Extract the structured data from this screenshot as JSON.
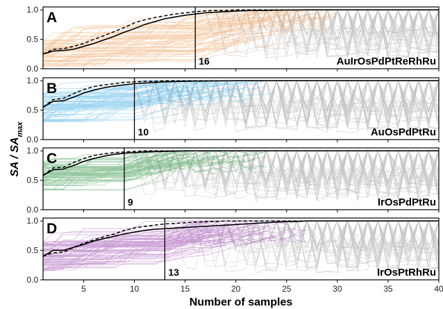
{
  "chart_data": {
    "type": "line",
    "xlabel": "Number of samples",
    "ylabel": {
      "main": "SA",
      "sep": " / ",
      "sub_base": "SA",
      "sub": "max"
    },
    "xlim": [
      1,
      40
    ],
    "xticks": [
      5,
      10,
      15,
      20,
      25,
      30,
      35,
      40
    ],
    "yticks": [
      0.0,
      0.5,
      1.0
    ],
    "ytick_labels": [
      "0.0",
      "0.5",
      "1.0"
    ],
    "ylim": [
      0,
      1.05
    ],
    "grid": false,
    "panels": [
      {
        "letter": "A",
        "name": "AuIrOsPdPtReRhRu",
        "threshold": 16,
        "threshold_label": "16",
        "color": "#f0a462",
        "mean_curve": {
          "x": [
            1,
            2,
            3,
            4,
            5,
            6,
            7,
            8,
            9,
            10,
            11,
            12,
            13,
            14,
            15,
            16,
            17,
            18,
            19,
            20,
            21,
            22,
            23,
            24,
            25,
            26,
            27,
            28,
            29,
            30,
            31,
            32,
            33,
            34,
            35,
            36,
            37,
            38,
            39,
            40
          ],
          "y": [
            0.25,
            0.3,
            0.31,
            0.33,
            0.38,
            0.43,
            0.49,
            0.55,
            0.62,
            0.68,
            0.75,
            0.8,
            0.85,
            0.88,
            0.91,
            0.93,
            0.95,
            0.96,
            0.97,
            0.98,
            0.985,
            0.99,
            0.99,
            0.995,
            0.997,
            0.998,
            1,
            1,
            1,
            1,
            1,
            1,
            1,
            1,
            1,
            1,
            1,
            1,
            1,
            1
          ]
        },
        "median_curve": {
          "x": [
            1,
            2,
            3,
            4,
            5,
            6,
            7,
            8,
            9,
            10,
            11,
            12,
            13,
            14,
            15,
            16,
            17,
            18,
            19,
            20,
            21,
            22,
            23,
            24,
            25,
            26,
            27,
            28,
            29,
            30,
            31,
            32,
            33,
            34,
            35,
            36,
            37,
            38,
            39,
            40
          ],
          "y": [
            0.25,
            0.33,
            0.34,
            0.38,
            0.43,
            0.5,
            0.56,
            0.63,
            0.7,
            0.78,
            0.83,
            0.87,
            0.9,
            0.93,
            0.95,
            0.97,
            0.98,
            0.99,
            0.99,
            1,
            1,
            1,
            1,
            1,
            1,
            1,
            1,
            1,
            1,
            1,
            1,
            1,
            1,
            1,
            1,
            1,
            1,
            1,
            1,
            1
          ]
        }
      },
      {
        "letter": "B",
        "name": "AuOsPdPtRu",
        "threshold": 10,
        "threshold_label": "10",
        "color": "#4db3e6",
        "mean_curve": {
          "x": [
            1,
            2,
            3,
            4,
            5,
            6,
            7,
            8,
            9,
            10,
            11,
            12,
            13,
            14,
            15,
            16,
            17,
            18,
            19,
            20,
            21,
            22,
            23,
            24,
            25,
            26,
            27,
            28,
            29,
            30,
            31,
            32,
            33,
            34,
            35,
            36,
            37,
            38,
            39,
            40
          ],
          "y": [
            0.55,
            0.65,
            0.66,
            0.72,
            0.79,
            0.84,
            0.88,
            0.91,
            0.93,
            0.95,
            0.96,
            0.97,
            0.98,
            0.985,
            0.99,
            0.993,
            0.995,
            0.997,
            0.998,
            1,
            1,
            1,
            1,
            1,
            1,
            1,
            1,
            1,
            1,
            1,
            1,
            1,
            1,
            1,
            1,
            1,
            1,
            1,
            1,
            1
          ]
        },
        "median_curve": {
          "x": [
            1,
            2,
            3,
            4,
            5,
            6,
            7,
            8,
            9,
            10,
            11,
            12,
            13,
            14,
            15,
            16,
            17,
            18,
            19,
            20,
            21,
            22,
            23,
            24,
            25,
            26,
            27,
            28,
            29,
            30,
            31,
            32,
            33,
            34,
            35,
            36,
            37,
            38,
            39,
            40
          ],
          "y": [
            0.55,
            0.68,
            0.7,
            0.78,
            0.85,
            0.9,
            0.93,
            0.95,
            0.97,
            0.98,
            0.99,
            0.99,
            1,
            1,
            1,
            1,
            1,
            1,
            1,
            1,
            1,
            1,
            1,
            1,
            1,
            1,
            1,
            1,
            1,
            1,
            1,
            1,
            1,
            1,
            1,
            1,
            1,
            1,
            1,
            1
          ]
        }
      },
      {
        "letter": "C",
        "name": "IrOsPdPtRu",
        "threshold": 9,
        "threshold_label": "9",
        "color": "#3d9a4f",
        "mean_curve": {
          "x": [
            1,
            2,
            3,
            4,
            5,
            6,
            7,
            8,
            9,
            10,
            11,
            12,
            13,
            14,
            15,
            16,
            17,
            18,
            19,
            20,
            21,
            22,
            23,
            24,
            25,
            26,
            27,
            28,
            29,
            30,
            31,
            32,
            33,
            34,
            35,
            36,
            37,
            38,
            39,
            40
          ],
          "y": [
            0.58,
            0.68,
            0.69,
            0.75,
            0.82,
            0.87,
            0.91,
            0.94,
            0.96,
            0.97,
            0.98,
            0.985,
            0.99,
            0.995,
            1,
            1,
            1,
            1,
            1,
            1,
            1,
            1,
            1,
            1,
            1,
            1,
            1,
            1,
            1,
            1,
            1,
            1,
            1,
            1,
            1,
            1,
            1,
            1,
            1,
            1
          ]
        },
        "median_curve": {
          "x": [
            1,
            2,
            3,
            4,
            5,
            6,
            7,
            8,
            9,
            10,
            11,
            12,
            13,
            14,
            15,
            16,
            17,
            18,
            19,
            20,
            21,
            22,
            23,
            24,
            25,
            26,
            27,
            28,
            29,
            30,
            31,
            32,
            33,
            34,
            35,
            36,
            37,
            38,
            39,
            40
          ],
          "y": [
            0.58,
            0.71,
            0.72,
            0.8,
            0.87,
            0.92,
            0.95,
            0.97,
            0.98,
            0.99,
            1,
            1,
            1,
            1,
            1,
            1,
            1,
            1,
            1,
            1,
            1,
            1,
            1,
            1,
            1,
            1,
            1,
            1,
            1,
            1,
            1,
            1,
            1,
            1,
            1,
            1,
            1,
            1,
            1,
            1
          ]
        }
      },
      {
        "letter": "D",
        "name": "IrOsPtRhRu",
        "threshold": 13,
        "threshold_label": "13",
        "color": "#a04fb5",
        "mean_curve": {
          "x": [
            1,
            2,
            3,
            4,
            5,
            6,
            7,
            8,
            9,
            10,
            11,
            12,
            13,
            14,
            15,
            16,
            17,
            18,
            19,
            20,
            21,
            22,
            23,
            24,
            25,
            26,
            27,
            28,
            29,
            30,
            31,
            32,
            33,
            34,
            35,
            36,
            37,
            38,
            39,
            40
          ],
          "y": [
            0.4,
            0.5,
            0.5,
            0.55,
            0.6,
            0.66,
            0.7,
            0.74,
            0.78,
            0.81,
            0.84,
            0.86,
            0.87,
            0.88,
            0.89,
            0.9,
            0.91,
            0.92,
            0.93,
            0.94,
            0.95,
            0.96,
            0.97,
            0.98,
            0.99,
            0.99,
            1,
            1,
            1,
            1,
            1,
            1,
            1,
            1,
            1,
            1,
            1,
            1,
            1,
            1
          ]
        },
        "median_curve": {
          "x": [
            1,
            2,
            3,
            4,
            5,
            6,
            7,
            8,
            9,
            10,
            11,
            12,
            13,
            14,
            15,
            16,
            17,
            18,
            19,
            20,
            21,
            22,
            23,
            24,
            25,
            26,
            27,
            28,
            29,
            30,
            31,
            32,
            33,
            34,
            35,
            36,
            37,
            38,
            39,
            40
          ],
          "y": [
            0.4,
            0.46,
            0.47,
            0.55,
            0.62,
            0.68,
            0.73,
            0.78,
            0.84,
            0.88,
            0.91,
            0.93,
            0.95,
            0.96,
            0.97,
            0.98,
            0.99,
            0.99,
            1,
            1,
            1,
            1,
            1,
            1,
            1,
            1,
            1,
            1,
            1,
            1,
            1,
            1,
            1,
            1,
            1,
            1,
            1,
            1,
            1,
            1
          ]
        }
      }
    ],
    "background_traces_color": "#b3b3b3"
  }
}
